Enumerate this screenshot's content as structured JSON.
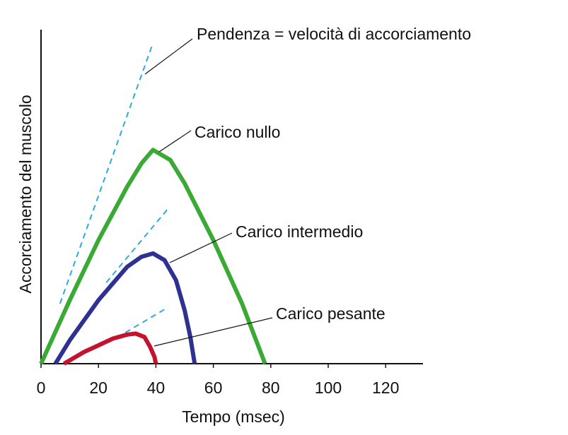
{
  "chart_data": {
    "type": "line",
    "x_label": "Tempo (msec)",
    "y_label": "Accorciamento del muscolo",
    "annotation": "Pendenza = velocità di accorciamento",
    "xlim": [
      0,
      133
    ],
    "ylim": [
      0,
      100
    ],
    "xticks": [
      0,
      20,
      40,
      60,
      80,
      100,
      120
    ],
    "series": [
      {
        "name": "Carico nullo",
        "color": "#3aaa35",
        "x": [
          0,
          10,
          20,
          30,
          35,
          39,
          45,
          50,
          60,
          70,
          78
        ],
        "values": [
          0,
          19,
          37,
          53,
          60,
          64,
          61,
          54,
          37,
          18,
          0
        ]
      },
      {
        "name": "Carico intermedio",
        "color": "#2e3192",
        "x": [
          5,
          10,
          20,
          30,
          35,
          39,
          43,
          47,
          50,
          52,
          53.5
        ],
        "values": [
          0,
          7,
          19,
          29,
          32,
          33,
          31,
          25,
          16,
          8,
          0
        ]
      },
      {
        "name": "Carico pesante",
        "color": "#c4122f",
        "x": [
          8,
          15,
          20,
          25,
          30,
          33,
          36,
          38,
          39.5,
          40
        ],
        "values": [
          0,
          3.5,
          5.5,
          7.5,
          8.7,
          9,
          8,
          5,
          2,
          0
        ]
      }
    ],
    "tangent_color": "#29abe2",
    "tangent_lines": [
      {
        "x": [
          6.6,
          38.9
        ],
        "values": [
          18,
          95.8
        ]
      },
      {
        "x": [
          22.7,
          44.8
        ],
        "values": [
          24.3,
          47
        ]
      },
      {
        "x": [
          26.4,
          43.1
        ],
        "values": [
          7.8,
          16.3
        ]
      }
    ]
  }
}
